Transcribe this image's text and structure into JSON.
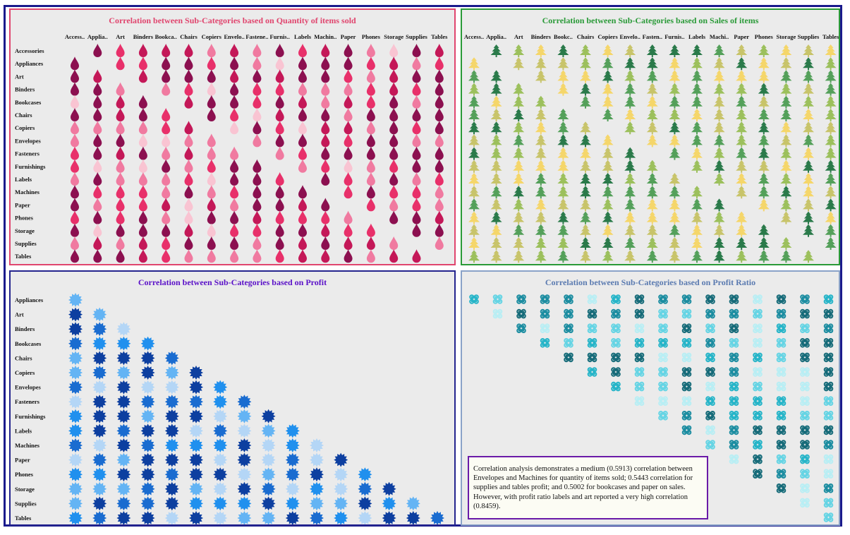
{
  "chart_data": [
    {
      "type": "heatmap",
      "title": "Correlation between Sub-Categories based on Quantity of items sold",
      "mark": "drop",
      "columns": [
        "Access..",
        "Applia..",
        "Art",
        "Binders",
        "Bookca..",
        "Chairs",
        "Copiers",
        "Envelo..",
        "Fastene..",
        "Furnis..",
        "Labels",
        "Machin..",
        "Paper",
        "Phones",
        "Storage",
        "Supplies",
        "Tables"
      ],
      "rows": [
        "Accessories",
        "Appliances",
        "Art",
        "Binders",
        "Bookcases",
        "Chairs",
        "Copiers",
        "Envelopes",
        "Fasteners",
        "Furnishings",
        "Labels",
        "Machines",
        "Paper",
        "Phones",
        "Storage",
        "Supplies",
        "Tables"
      ],
      "highlighted_value": 0.5913,
      "highlighted_pair": [
        "Envelopes",
        "Machines"
      ],
      "palette": [
        "#f9c4d2",
        "#f07aa0",
        "#e8306a",
        "#c41858",
        "#8c1050"
      ]
    },
    {
      "type": "heatmap",
      "title": "Correlation between Sub-Categories based on Sales of items",
      "mark": "tree",
      "columns": [
        "Access..",
        "Applia..",
        "Art",
        "Binders",
        "Bookc..",
        "Chairs",
        "Copiers",
        "Envelo..",
        "Fasten..",
        "Furnis..",
        "Labels",
        "Machi..",
        "Paper",
        "Phones",
        "Storage",
        "Supplies",
        "Tables"
      ],
      "highlighted_value": 0.5002,
      "highlighted_pair": [
        "Bookcases",
        "Paper"
      ],
      "palette": [
        "#f5d66a",
        "#c8c46a",
        "#9cc05c",
        "#54a05a",
        "#2a7a4a"
      ]
    },
    {
      "type": "heatmap",
      "title": "Correlation between Sub-Categories based on Profit",
      "mark": "star",
      "rows": [
        "Appliances",
        "Art",
        "Binders",
        "Bookcases",
        "Chairs",
        "Copiers",
        "Envelopes",
        "Fasteners",
        "Furnishings",
        "Labels",
        "Machines",
        "Paper",
        "Phones",
        "Storage",
        "Supplies",
        "Tables"
      ],
      "highlighted_value": 0.5443,
      "highlighted_pair": [
        "Supplies",
        "Tables"
      ],
      "palette": [
        "#e4eef8",
        "#b4d6f6",
        "#64b4f4",
        "#2090ee",
        "#1a6cd0",
        "#0d3fa0"
      ]
    },
    {
      "type": "heatmap",
      "title": "Correlation between Sub-Categories based on Profit Ratio",
      "mark": "command",
      "highlighted_value": 0.8459,
      "highlighted_pair": [
        "Labels",
        "Art"
      ],
      "palette": [
        "#b8eef4",
        "#64d4e4",
        "#24b4c8",
        "#1a8ca0",
        "#146a78"
      ]
    }
  ],
  "note": "Correlation analysis demonstrates a medium (0.5913) correlation between Envelopes and Machines for quantity of items sold; 0.5443 correlation for supplies and tables profit; and 0.5002 for bookcases and paper on sales. However, with profit ratio labels and art reported a very high correlation (0.8459)."
}
